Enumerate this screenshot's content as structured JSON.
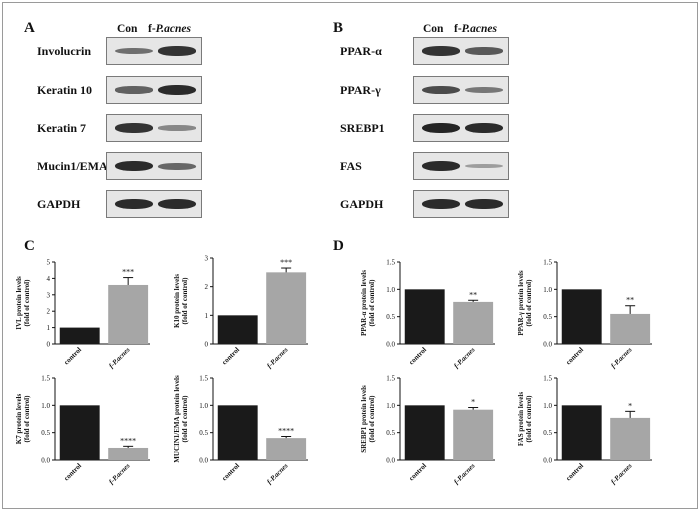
{
  "panels": {
    "A": "A",
    "B": "B",
    "C": "C",
    "D": "D"
  },
  "blot_headers": {
    "con": "Con",
    "f_prefix": "f-",
    "f_name": "P.acnes"
  },
  "blots_A": [
    {
      "label": "Involucrin",
      "con": 0.45,
      "fp": 0.85
    },
    {
      "label": "Keratin 10",
      "con": 0.55,
      "fp": 0.9
    },
    {
      "label": "Keratin 7",
      "con": 0.85,
      "fp": 0.3
    },
    {
      "label": "Mucin1/EMA",
      "con": 0.9,
      "fp": 0.5
    },
    {
      "label": "GAPDH",
      "con": 0.9,
      "fp": 0.9
    }
  ],
  "blots_B": [
    {
      "label": "PPAR-α",
      "con": 0.85,
      "fp": 0.6
    },
    {
      "label": "PPAR-γ",
      "con": 0.7,
      "fp": 0.4
    },
    {
      "label": "SREBP1",
      "con": 0.95,
      "fp": 0.9
    },
    {
      "label": "FAS",
      "con": 0.9,
      "fp": 0.15
    },
    {
      "label": "GAPDH",
      "con": 0.9,
      "fp": 0.9
    }
  ],
  "chart_data": [
    {
      "type": "bar",
      "panel": "C",
      "ylabel": "IVL protein levels (fold of control)",
      "categories": [
        "control",
        "f-P.acnes"
      ],
      "values": [
        1.0,
        3.6
      ],
      "errors": [
        0,
        0.45
      ],
      "ylim": [
        0,
        5
      ],
      "yticks": [
        0,
        1,
        2,
        3,
        4,
        5
      ],
      "significance": "***",
      "colors": [
        "#1a1a1a",
        "#a6a6a6"
      ]
    },
    {
      "type": "bar",
      "panel": "C",
      "ylabel": "K10 protein levels (fold of control)",
      "categories": [
        "control",
        "f-P.acnes"
      ],
      "values": [
        1.0,
        2.5
      ],
      "errors": [
        0,
        0.15
      ],
      "ylim": [
        0,
        3
      ],
      "yticks": [
        0,
        1,
        2,
        3
      ],
      "significance": "***",
      "colors": [
        "#1a1a1a",
        "#a6a6a6"
      ]
    },
    {
      "type": "bar",
      "panel": "C",
      "ylabel": "K7 protein levels (fold of control)",
      "categories": [
        "control",
        "f-P.acnes"
      ],
      "values": [
        1.0,
        0.22
      ],
      "errors": [
        0,
        0.03
      ],
      "ylim": [
        0,
        1.5
      ],
      "yticks": [
        0,
        0.5,
        1.0,
        1.5
      ],
      "significance": "****",
      "colors": [
        "#1a1a1a",
        "#a6a6a6"
      ]
    },
    {
      "type": "bar",
      "panel": "C",
      "ylabel": "MUCIN1/EMA protein levels (fold of control)",
      "categories": [
        "control",
        "f-P.acnes"
      ],
      "values": [
        1.0,
        0.4
      ],
      "errors": [
        0,
        0.03
      ],
      "ylim": [
        0,
        1.5
      ],
      "yticks": [
        0,
        0.5,
        1.0,
        1.5
      ],
      "significance": "****",
      "colors": [
        "#1a1a1a",
        "#a6a6a6"
      ]
    },
    {
      "type": "bar",
      "panel": "D",
      "ylabel": "PPAR-α protein levels (fold of control)",
      "categories": [
        "control",
        "f-P.acnes"
      ],
      "values": [
        1.0,
        0.77
      ],
      "errors": [
        0,
        0.03
      ],
      "ylim": [
        0,
        1.5
      ],
      "yticks": [
        0,
        0.5,
        1.0,
        1.5
      ],
      "significance": "**",
      "colors": [
        "#1a1a1a",
        "#a6a6a6"
      ]
    },
    {
      "type": "bar",
      "panel": "D",
      "ylabel": "PPAR-γ protein levels (fold of control)",
      "categories": [
        "control",
        "f-P.acnes"
      ],
      "values": [
        1.0,
        0.55
      ],
      "errors": [
        0,
        0.15
      ],
      "ylim": [
        0,
        1.5
      ],
      "yticks": [
        0,
        0.5,
        1.0,
        1.5
      ],
      "significance": "**",
      "colors": [
        "#1a1a1a",
        "#a6a6a6"
      ]
    },
    {
      "type": "bar",
      "panel": "D",
      "ylabel": "SREBP1 protein levels (fold of control)",
      "categories": [
        "control",
        "f-P.acnes"
      ],
      "values": [
        1.0,
        0.92
      ],
      "errors": [
        0,
        0.04
      ],
      "ylim": [
        0,
        1.5
      ],
      "yticks": [
        0,
        0.5,
        1.0,
        1.5
      ],
      "significance": "*",
      "colors": [
        "#1a1a1a",
        "#a6a6a6"
      ]
    },
    {
      "type": "bar",
      "panel": "D",
      "ylabel": "FAS protein levels (fold of control)",
      "categories": [
        "control",
        "f-P.acnes"
      ],
      "values": [
        1.0,
        0.77
      ],
      "errors": [
        0,
        0.12
      ],
      "ylim": [
        0,
        1.5
      ],
      "yticks": [
        0,
        0.5,
        1.0,
        1.5
      ],
      "significance": "*",
      "colors": [
        "#1a1a1a",
        "#a6a6a6"
      ]
    }
  ]
}
